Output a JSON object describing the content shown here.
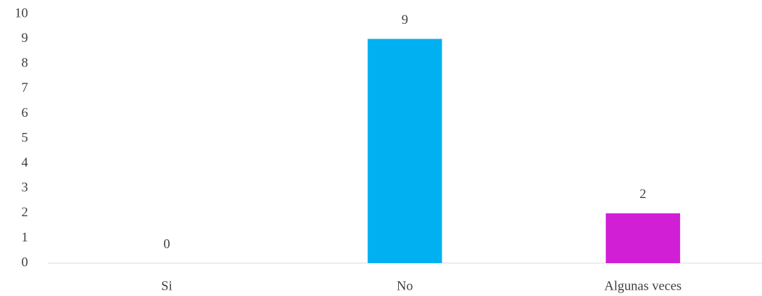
{
  "chart_data": {
    "type": "bar",
    "categories": [
      "Si",
      "No",
      "Algunas veces"
    ],
    "values": [
      0,
      9,
      2
    ],
    "colors": [
      "#00b0f0",
      "#00b0f0",
      "#d11fd6"
    ],
    "ylim": [
      0,
      10
    ],
    "yticks": [
      0,
      1,
      2,
      3,
      4,
      5,
      6,
      7,
      8,
      9,
      10
    ],
    "grid": false,
    "data_labels": true
  }
}
